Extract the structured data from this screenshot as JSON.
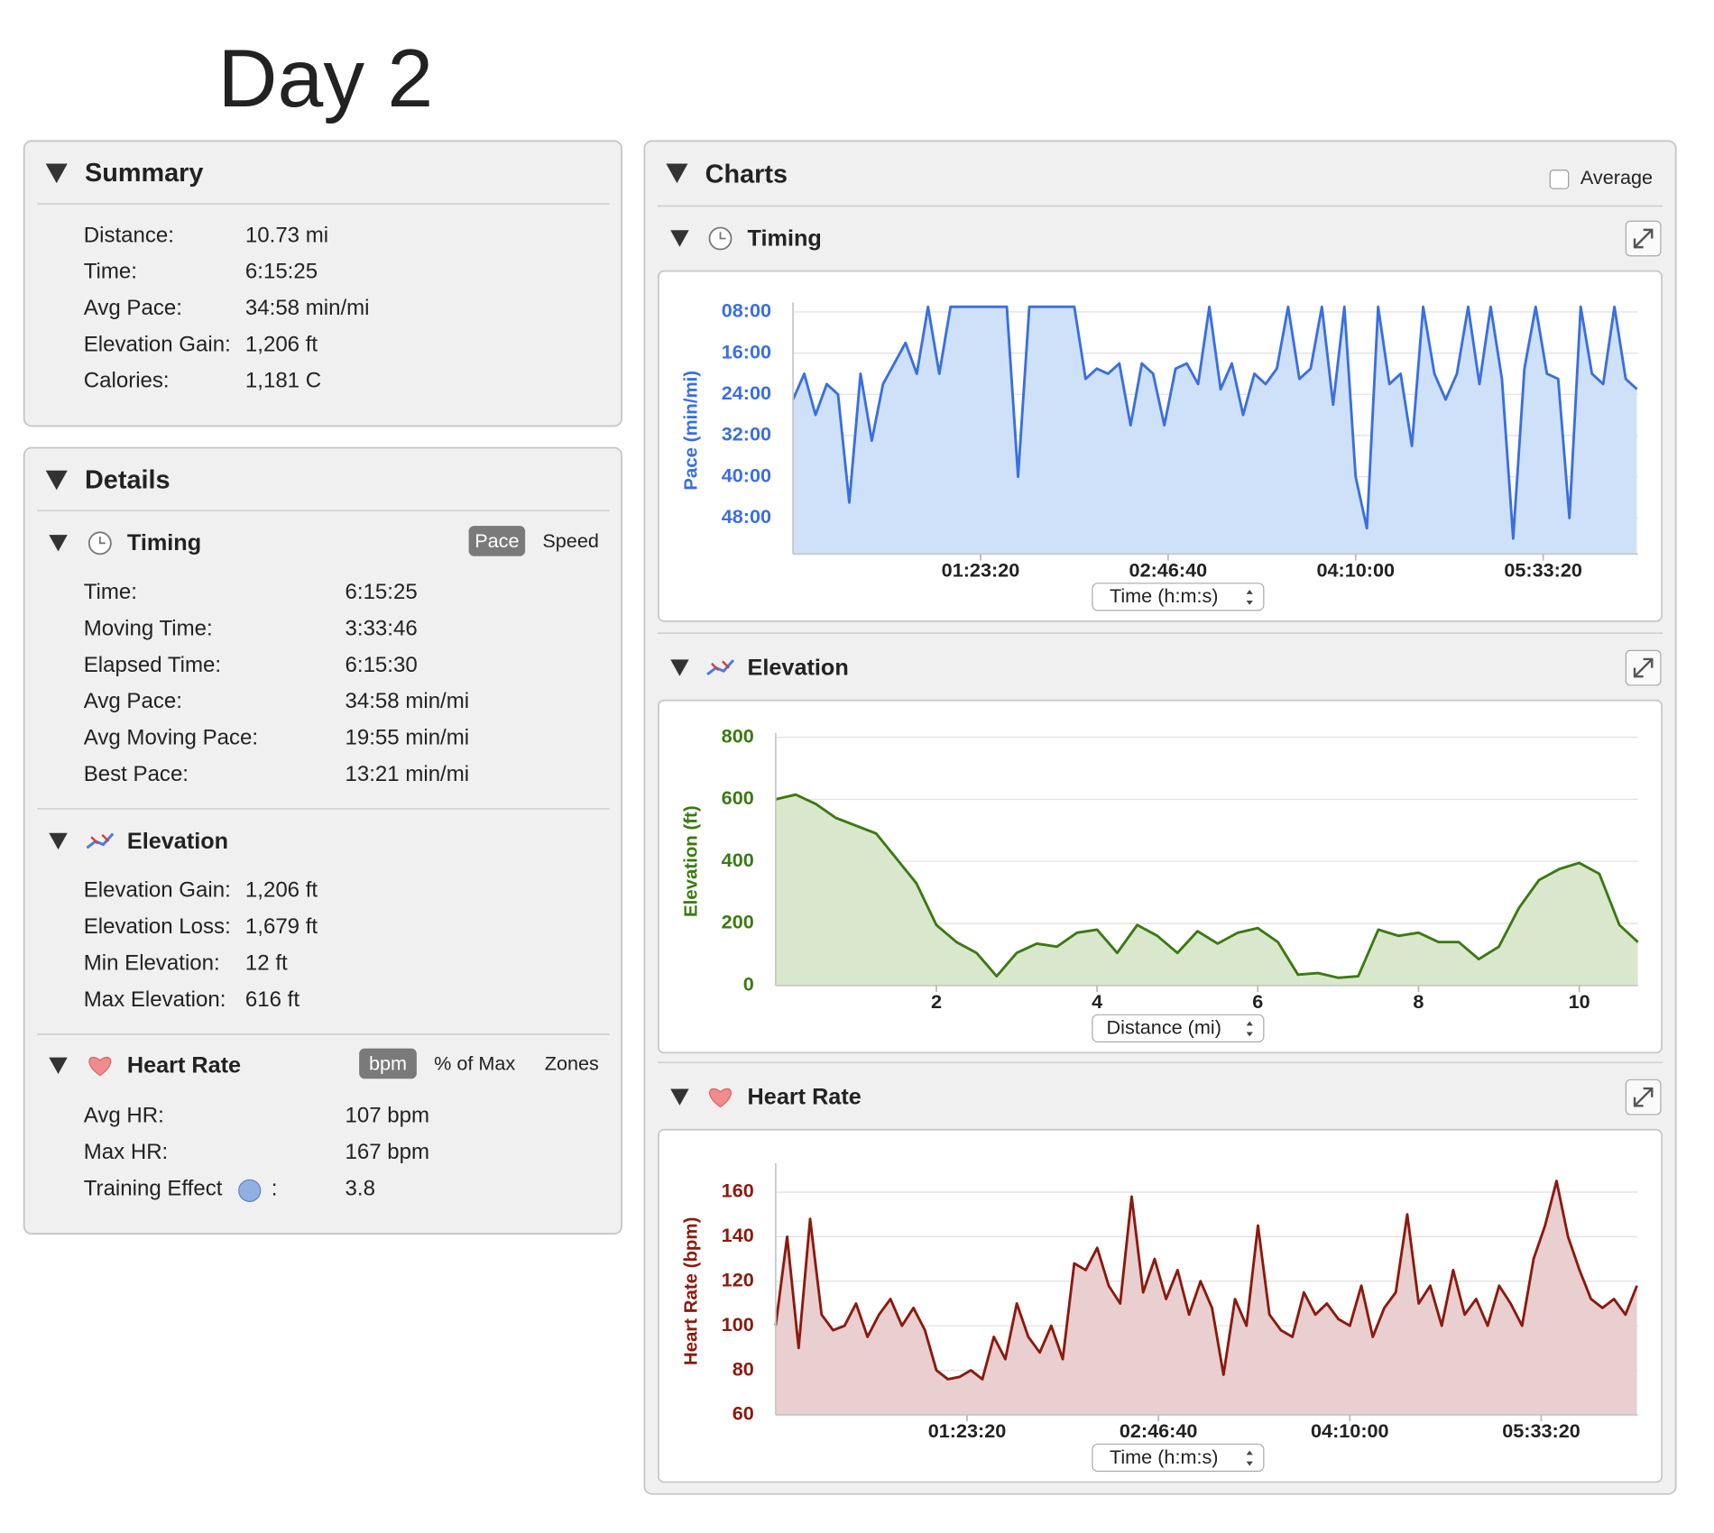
{
  "header": {
    "title": "Day 2"
  },
  "summary": {
    "title": "Summary",
    "rows": [
      [
        "Distance:",
        "10.73 mi"
      ],
      [
        "Time:",
        "6:15:25"
      ],
      [
        "Avg Pace:",
        "34:58 min/mi"
      ],
      [
        "Elevation Gain:",
        "1,206 ft"
      ],
      [
        "Calories:",
        "1,181 C"
      ]
    ]
  },
  "details": {
    "title": "Details",
    "timing": {
      "title": "Timing",
      "toggles": [
        "Pace",
        "Speed"
      ],
      "rows": [
        [
          "Time:",
          "6:15:25"
        ],
        [
          "Moving Time:",
          "3:33:46"
        ],
        [
          "Elapsed Time:",
          "6:15:30"
        ],
        [
          "Avg Pace:",
          "34:58 min/mi"
        ],
        [
          "Avg Moving Pace:",
          "19:55 min/mi"
        ],
        [
          "Best Pace:",
          "13:21 min/mi"
        ]
      ]
    },
    "elevation": {
      "title": "Elevation",
      "rows": [
        [
          "Elevation Gain:",
          "1,206 ft"
        ],
        [
          "Elevation Loss:",
          "1,679 ft"
        ],
        [
          "Min Elevation:",
          "12 ft"
        ],
        [
          "Max Elevation:",
          "616 ft"
        ]
      ]
    },
    "heart_rate": {
      "title": "Heart Rate",
      "toggles": [
        "bpm",
        "% of Max",
        "Zones"
      ],
      "rows": [
        [
          "Avg HR:",
          "107 bpm"
        ],
        [
          "Max HR:",
          "167 bpm"
        ],
        [
          "Training Effect",
          ":",
          "3.8"
        ]
      ]
    }
  },
  "charts_panel": {
    "title": "Charts",
    "average_label": "Average"
  },
  "chart_data": [
    {
      "type": "area",
      "title": "Timing",
      "ylabel": "Pace (min/mi)",
      "xlabel": "Time (h:m:s)",
      "color": "#3a6fe0",
      "fill_color": "#cfe1f9",
      "grid": true,
      "xlim": [
        0,
        22525
      ],
      "ylim": [
        55,
        7
      ],
      "xticks": [
        {
          "value": 5000,
          "label": "01:23:20"
        },
        {
          "value": 10000,
          "label": "02:46:40"
        },
        {
          "value": 15000,
          "label": "04:10:00"
        },
        {
          "value": 20000,
          "label": "05:33:20"
        }
      ],
      "yticks": [
        {
          "value": 8,
          "label": "08:00"
        },
        {
          "value": 16,
          "label": "16:00"
        },
        {
          "value": 24,
          "label": "24:00"
        },
        {
          "value": 32,
          "label": "32:00"
        },
        {
          "value": 40,
          "label": "40:00"
        },
        {
          "value": 48,
          "label": "48:00"
        }
      ],
      "x": [
        0,
        300,
        600,
        900,
        1200,
        1500,
        1800,
        2100,
        2400,
        2700,
        3000,
        3300,
        3600,
        3900,
        4200,
        4500,
        4800,
        5100,
        5400,
        5700,
        6000,
        6300,
        6600,
        6900,
        7200,
        7500,
        7800,
        8100,
        8400,
        8700,
        9000,
        9300,
        9600,
        9900,
        10200,
        10500,
        10800,
        11100,
        11400,
        11700,
        12000,
        12300,
        12600,
        12900,
        13200,
        13500,
        13800,
        14100,
        14400,
        14700,
        15000,
        15300,
        15600,
        15900,
        16200,
        16500,
        16800,
        17100,
        17400,
        17700,
        18000,
        18300,
        18600,
        18900,
        19200,
        19500,
        19800,
        20100,
        20400,
        20700,
        21000,
        21300,
        21600,
        21900,
        22200,
        22500
      ],
      "values": [
        25,
        20,
        28,
        22,
        24,
        45,
        20,
        33,
        22,
        18,
        14,
        20,
        7,
        20,
        7,
        7,
        7,
        7,
        7,
        7,
        40,
        7,
        7,
        7,
        7,
        7,
        21,
        19,
        20,
        18,
        30,
        18,
        20,
        30,
        19,
        18,
        22,
        7,
        23,
        18,
        28,
        20,
        22,
        19,
        7,
        21,
        19,
        7,
        26,
        7,
        40,
        50,
        7,
        22,
        20,
        34,
        7,
        20,
        25,
        20,
        7,
        22,
        7,
        21,
        52,
        19,
        7,
        20,
        21,
        48,
        7,
        20,
        22,
        7,
        21,
        23
      ]
    },
    {
      "type": "area",
      "title": "Elevation",
      "ylabel": "Elevation (ft)",
      "xlabel": "Distance (mi)",
      "color": "#3b7a12",
      "fill_color": "#d9e8cd",
      "grid": true,
      "xlim": [
        0,
        10.73
      ],
      "ylim": [
        0,
        800
      ],
      "xticks": [
        2,
        4,
        6,
        8,
        10
      ],
      "yticks": [
        0,
        200,
        400,
        600,
        800
      ],
      "x": [
        0,
        0.25,
        0.5,
        0.75,
        1,
        1.25,
        1.5,
        1.75,
        2,
        2.25,
        2.5,
        2.75,
        3,
        3.25,
        3.5,
        3.75,
        4,
        4.25,
        4.5,
        4.75,
        5,
        5.25,
        5.5,
        5.75,
        6,
        6.25,
        6.5,
        6.75,
        7,
        7.25,
        7.5,
        7.75,
        8,
        8.25,
        8.5,
        8.75,
        9,
        9.25,
        9.5,
        9.75,
        10,
        10.25,
        10.5,
        10.73
      ],
      "values": [
        600,
        615,
        585,
        540,
        515,
        490,
        410,
        330,
        195,
        140,
        105,
        30,
        105,
        135,
        125,
        170,
        180,
        105,
        195,
        160,
        105,
        175,
        135,
        170,
        185,
        140,
        35,
        40,
        25,
        30,
        180,
        160,
        170,
        140,
        140,
        85,
        125,
        250,
        340,
        375,
        395,
        360,
        195,
        140
      ]
    },
    {
      "type": "area",
      "title": "Heart Rate",
      "ylabel": "Heart Rate (bpm)",
      "xlabel": "Time (h:m:s)",
      "color": "#8b1a0e",
      "fill_color": "#e9cfcf",
      "grid": true,
      "xlim": [
        0,
        22525
      ],
      "ylim": [
        60,
        171
      ],
      "xticks": [
        {
          "value": 5000,
          "label": "01:23:20"
        },
        {
          "value": 10000,
          "label": "02:46:40"
        },
        {
          "value": 15000,
          "label": "04:10:00"
        },
        {
          "value": 20000,
          "label": "05:33:20"
        }
      ],
      "yticks": [
        60,
        80,
        100,
        120,
        140,
        160
      ],
      "x": [
        0,
        300,
        600,
        900,
        1200,
        1500,
        1800,
        2100,
        2400,
        2700,
        3000,
        3300,
        3600,
        3900,
        4200,
        4500,
        4800,
        5100,
        5400,
        5700,
        6000,
        6300,
        6600,
        6900,
        7200,
        7500,
        7800,
        8100,
        8400,
        8700,
        9000,
        9300,
        9600,
        9900,
        10200,
        10500,
        10800,
        11100,
        11400,
        11700,
        12000,
        12300,
        12600,
        12900,
        13200,
        13500,
        13800,
        14100,
        14400,
        14700,
        15000,
        15300,
        15600,
        15900,
        16200,
        16500,
        16800,
        17100,
        17400,
        17700,
        18000,
        18300,
        18600,
        18900,
        19200,
        19500,
        19800,
        20100,
        20400,
        20700,
        21000,
        21300,
        21600,
        21900,
        22200,
        22500
      ],
      "values": [
        100,
        140,
        90,
        148,
        105,
        98,
        100,
        110,
        95,
        105,
        112,
        100,
        108,
        98,
        80,
        76,
        77,
        80,
        76,
        95,
        85,
        110,
        95,
        88,
        100,
        85,
        128,
        125,
        135,
        118,
        110,
        158,
        115,
        130,
        112,
        125,
        105,
        120,
        108,
        78,
        112,
        100,
        145,
        105,
        98,
        95,
        115,
        105,
        110,
        103,
        100,
        118,
        95,
        108,
        115,
        150,
        110,
        118,
        100,
        125,
        105,
        112,
        100,
        118,
        110,
        100,
        130,
        145,
        165,
        140,
        125,
        112,
        108,
        112,
        105,
        118
      ]
    }
  ]
}
